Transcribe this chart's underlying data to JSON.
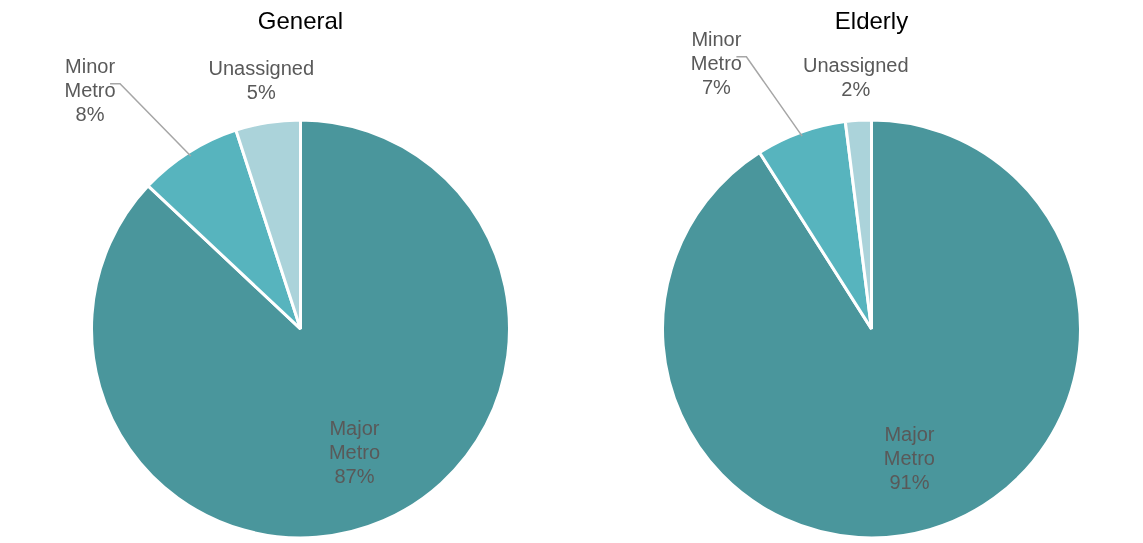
{
  "chart_data": [
    {
      "type": "pie",
      "title": "General",
      "categories": [
        "Major Metro",
        "Minor Metro",
        "Unassigned"
      ],
      "values": [
        87,
        8,
        5
      ],
      "value_labels": [
        "87%",
        "8%",
        "5%"
      ],
      "colors": [
        "#4a969c",
        "#57b4be",
        "#abd3da"
      ],
      "legend": false
    },
    {
      "type": "pie",
      "title": "Elderly",
      "categories": [
        "Major Metro",
        "Minor Metro",
        "Unassigned"
      ],
      "values": [
        91,
        7,
        2
      ],
      "value_labels": [
        "91%",
        "7%",
        "2%"
      ],
      "colors": [
        "#4a969c",
        "#57b4be",
        "#abd3da"
      ],
      "legend": false
    }
  ]
}
